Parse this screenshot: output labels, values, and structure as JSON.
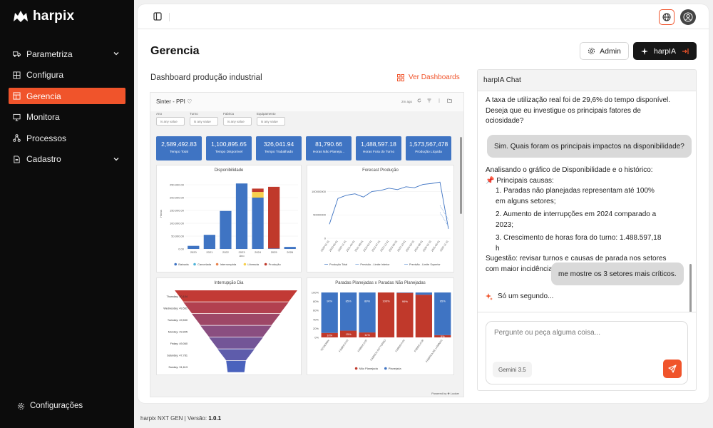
{
  "app": {
    "name": "harpix"
  },
  "sidebar": {
    "items": [
      {
        "label": "Parametriza",
        "icon": "truck-icon",
        "expandable": true
      },
      {
        "label": "Configura",
        "icon": "grid-icon",
        "expandable": false
      },
      {
        "label": "Gerencia",
        "icon": "layout-icon",
        "expandable": false,
        "active": true
      },
      {
        "label": "Monitora",
        "icon": "monitor-icon",
        "expandable": false
      },
      {
        "label": "Processos",
        "icon": "workflow-icon",
        "expandable": false
      },
      {
        "label": "Cadastro",
        "icon": "document-icon",
        "expandable": true
      }
    ],
    "footer_label": "Configurações"
  },
  "header": {
    "title": "Gerencia",
    "admin_label": "Admin",
    "harpia_label": "harpIA"
  },
  "dashboard": {
    "title": "Dashboard produção industrial",
    "link_label": "Ver Dashboards",
    "embed": {
      "name": "Sinter - PPI",
      "updated": "2m ago",
      "powered_by": "Powered by ⎈ Looker",
      "filters": [
        {
          "label": "Ano",
          "value": "is any value"
        },
        {
          "label": "Turno",
          "value": "is any value"
        },
        {
          "label": "Fabrica",
          "value": "is any value"
        },
        {
          "label": "Equipamento",
          "value": "is any value"
        }
      ],
      "kpis": [
        {
          "value": "2,589,492.83",
          "label": "Tempo Total"
        },
        {
          "value": "1,100,895.65",
          "label": "Tempo Disponível"
        },
        {
          "value": "326,041.94",
          "label": "Tempo Trabalhado"
        },
        {
          "value": "81,790.66",
          "label": "Horas Não Planeja..."
        },
        {
          "value": "1,488,597.18",
          "label": "Horas Fora do Turno"
        },
        {
          "value": "1,573,567,478",
          "label": "Produção Líquida"
        }
      ]
    }
  },
  "chart_data": [
    {
      "type": "bar",
      "title": "Disponibilidade",
      "xlabel": "Ano",
      "ylabel": "Horas",
      "ylim": [
        0,
        275000
      ],
      "yticks": [
        "0.00",
        "50,000.00",
        "100,000.00",
        "150,000.00",
        "200,000.00",
        "250,000.00"
      ],
      "categories": [
        "2020",
        "2021",
        "2022",
        "2023",
        "2024",
        "2025",
        "2026"
      ],
      "stacked": true,
      "series": [
        {
          "name": "Baixada",
          "color": "#3f74c3",
          "values": [
            12000,
            55000,
            148000,
            255000,
            200000,
            2000,
            8000
          ]
        },
        {
          "name": "Cancelada",
          "color": "#4fb3d9",
          "values": [
            0,
            0,
            0,
            0,
            0,
            0,
            0
          ]
        },
        {
          "name": "Interrompida",
          "color": "#e8834e",
          "values": [
            0,
            0,
            0,
            0,
            0,
            0,
            0
          ]
        },
        {
          "name": "Liberada",
          "color": "#f7d04d",
          "values": [
            0,
            0,
            0,
            0,
            22000,
            0,
            0
          ]
        },
        {
          "name": "Produção",
          "color": "#c0392b",
          "values": [
            0,
            0,
            0,
            0,
            13000,
            240000,
            0
          ]
        }
      ],
      "legend": "bottom"
    },
    {
      "type": "line",
      "title": "Forecast Produção",
      "yticks": [
        "0",
        "50000000",
        "100000000"
      ],
      "ylim": [
        0,
        125000000
      ],
      "x": [
        "2020-01-01",
        "2020-06-01",
        "2020-11-01",
        "2021-04-01",
        "2021-09-01",
        "2022-02-01",
        "2022-07-01",
        "2022-12-01",
        "2023-05-01",
        "2023-10-01",
        "2024-03-01",
        "2024-08-01",
        "2025-01-01",
        "2025-06-01",
        "2025-11-01"
      ],
      "series": [
        {
          "name": "Produção Total",
          "color": "#3f74c3",
          "values": [
            30000000,
            85000000,
            92000000,
            95000000,
            88000000,
            100000000,
            102000000,
            107000000,
            104000000,
            110000000,
            108000000,
            115000000,
            117000000,
            120000000,
            20000000
          ]
        },
        {
          "name": "Previsão - Limite Inferior",
          "color": "#6a9ad6",
          "values": [
            null,
            null,
            null,
            null,
            null,
            null,
            null,
            null,
            null,
            null,
            null,
            null,
            null,
            55000000,
            25000000
          ]
        },
        {
          "name": "Previsão - Limite Superior",
          "color": "#6a9ad6",
          "values": [
            null,
            null,
            null,
            null,
            null,
            null,
            null,
            null,
            null,
            null,
            null,
            null,
            null,
            70000000,
            40000000
          ]
        }
      ],
      "legend": "bottom"
    },
    {
      "type": "funnel",
      "title": "Interrupção Dia",
      "categories": [
        "Thursday",
        "Wednesday",
        "Tuesday",
        "Monday",
        "Friday",
        "Saturday",
        "Sunday"
      ],
      "labels": [
        "Thursday: 50,104",
        "Wednesday: 49,561",
        "Tuesday: 49,530",
        "Monday: 49,905",
        "Friday: 49,060",
        "Saturday: 47,781",
        "Sunday: 31,613"
      ],
      "values": [
        50104,
        49561,
        49530,
        49905,
        49060,
        47781,
        31613
      ]
    },
    {
      "type": "bar",
      "title": "Paradas Planejadas x Paradas Não Planejadas",
      "stacked": true,
      "percent": true,
      "yticks": [
        "0%",
        "20%",
        "40%",
        "60%",
        "80%",
        "100%"
      ],
      "categories": [
        "TECNOMIX",
        "FÁBRICA 03",
        "FÁBRICA 05",
        "FÁBRICA DO TURNO",
        "FÁBRICA 04",
        "FÁBRICA 08",
        "FÁBRICA DE LAMINAS"
      ],
      "series": [
        {
          "name": "Não Planejada",
          "color": "#c0392b",
          "values": [
            10,
            15,
            11,
            100,
            99,
            95,
            5
          ],
          "labels": [
            "10%",
            "15%",
            "11%",
            "100%",
            "99%",
            "",
            "5%"
          ]
        },
        {
          "name": "Planejada",
          "color": "#3f74c3",
          "values": [
            90,
            85,
            89,
            0,
            1,
            5,
            95
          ],
          "labels": [
            "90%",
            "85%",
            "89%",
            "0%",
            "1%",
            "",
            "95%"
          ]
        }
      ],
      "legend": "bottom"
    }
  ],
  "chat": {
    "title": "harpIA Chat",
    "messages": [
      {
        "role": "assistant",
        "lines": [
          "A taxa de utilização real foi de 29,6% do tempo disponível.",
          "Deseja que eu investigue os principais fatores de",
          "ociosidade?"
        ]
      },
      {
        "role": "user",
        "text": "Sim. Quais foram os principais impactos na disponibilidade?"
      },
      {
        "role": "assistant",
        "intro": "Analisando o gráfico de Disponibilidade e o histórico:",
        "heading": "📌 Principais causas:",
        "list": [
          "Paradas não planejadas representam até 100% em alguns setores;",
          "Aumento de interrupções em 2024 comparado a 2023;",
          "Crescimento de horas fora do turno: 1.488.597,18 h"
        ],
        "outro": "Sugestão: revisar turnos e causas de parada nos setores com maior incidência. Quer que eu detalhe por setor?"
      },
      {
        "role": "user",
        "text": "me mostre os 3 setores mais críticos."
      },
      {
        "role": "assistant",
        "text": "Só um segundo..."
      }
    ],
    "input_placeholder": "Pergunte ou peça alguma coisa...",
    "model": "Gemini 3.5"
  },
  "footer": {
    "label": "harpix NXT GEN | Versão:",
    "version": "1.0.1"
  },
  "colors": {
    "accent": "#f0542b",
    "sidebar": "#0c0c0c",
    "kpi": "#3f74c3"
  }
}
